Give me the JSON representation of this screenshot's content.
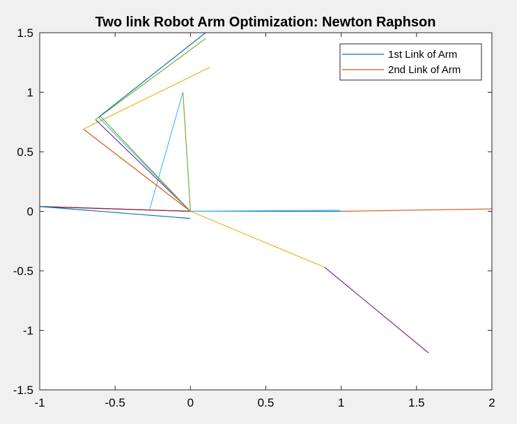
{
  "chart_data": {
    "type": "line",
    "title": "Two link Robot Arm Optimization: Newton Raphson",
    "xlabel": "",
    "ylabel": "",
    "xlim": [
      -1,
      2
    ],
    "ylim": [
      -1.5,
      1.5
    ],
    "xticks": [
      -1,
      -0.5,
      0,
      0.5,
      1,
      1.5,
      2
    ],
    "yticks": [
      -1.5,
      -1,
      -0.5,
      0,
      0.5,
      1,
      1.5
    ],
    "xtick_labels": [
      "-1",
      "-0.5",
      "0",
      "0.5",
      "1",
      "1.5",
      "2"
    ],
    "ytick_labels": [
      "-1.5",
      "-1",
      "-0.5",
      "0",
      "0.5",
      "1",
      "1.5"
    ],
    "grid": false,
    "legend_position": "top-right",
    "legend": [
      {
        "label": "1st Link of Arm",
        "color": "#0072BD"
      },
      {
        "label": "2nd Link of Arm",
        "color": "#D95319"
      }
    ],
    "series": [
      {
        "color": "#0072BD",
        "x": [
          0,
          1
        ],
        "y": [
          0,
          0
        ]
      },
      {
        "color": "#D95319",
        "x": [
          1,
          2
        ],
        "y": [
          0,
          0.02
        ]
      },
      {
        "color": "#0072BD",
        "x": [
          0,
          -1
        ],
        "y": [
          0,
          0.04
        ]
      },
      {
        "color": "#A2142F",
        "x": [
          -1,
          0
        ],
        "y": [
          0.04,
          0
        ]
      },
      {
        "color": "#0072BD",
        "x": [
          -1,
          0
        ],
        "y": [
          0.04,
          -0.06
        ]
      },
      {
        "color": "#4DBEEE",
        "x": [
          0,
          0.99
        ],
        "y": [
          0,
          0.01
        ]
      },
      {
        "color": "#EDB120",
        "x": [
          0,
          0.89
        ],
        "y": [
          0,
          -0.47
        ]
      },
      {
        "color": "#7E2F8E",
        "x": [
          0.89,
          1.58
        ],
        "y": [
          -0.47,
          -1.19
        ]
      },
      {
        "color": "#4DBEEE",
        "x": [
          -0.27,
          -0.05
        ],
        "y": [
          0.02,
          1
        ]
      },
      {
        "color": "#77AC30",
        "x": [
          -0.05,
          0
        ],
        "y": [
          1,
          0
        ]
      },
      {
        "color": "#D95319",
        "x": [
          0,
          -0.71
        ],
        "y": [
          0,
          0.69
        ]
      },
      {
        "color": "#EDB120",
        "x": [
          -0.71,
          0.13
        ],
        "y": [
          0.69,
          1.21
        ]
      },
      {
        "color": "#7E2F8E",
        "x": [
          0,
          -0.63
        ],
        "y": [
          0,
          0.77
        ]
      },
      {
        "color": "#77AC30",
        "x": [
          -0.63,
          0.1
        ],
        "y": [
          0.77,
          1.45
        ]
      },
      {
        "color": "#4DBEEE",
        "x": [
          0,
          -0.61
        ],
        "y": [
          0,
          0.79
        ]
      },
      {
        "color": "#0072BD",
        "x": [
          -0.61,
          0.1
        ],
        "y": [
          0.79,
          1.5
        ]
      },
      {
        "color": "#77AC30",
        "x": [
          0,
          -0.6
        ],
        "y": [
          0,
          0.8
        ]
      }
    ]
  }
}
